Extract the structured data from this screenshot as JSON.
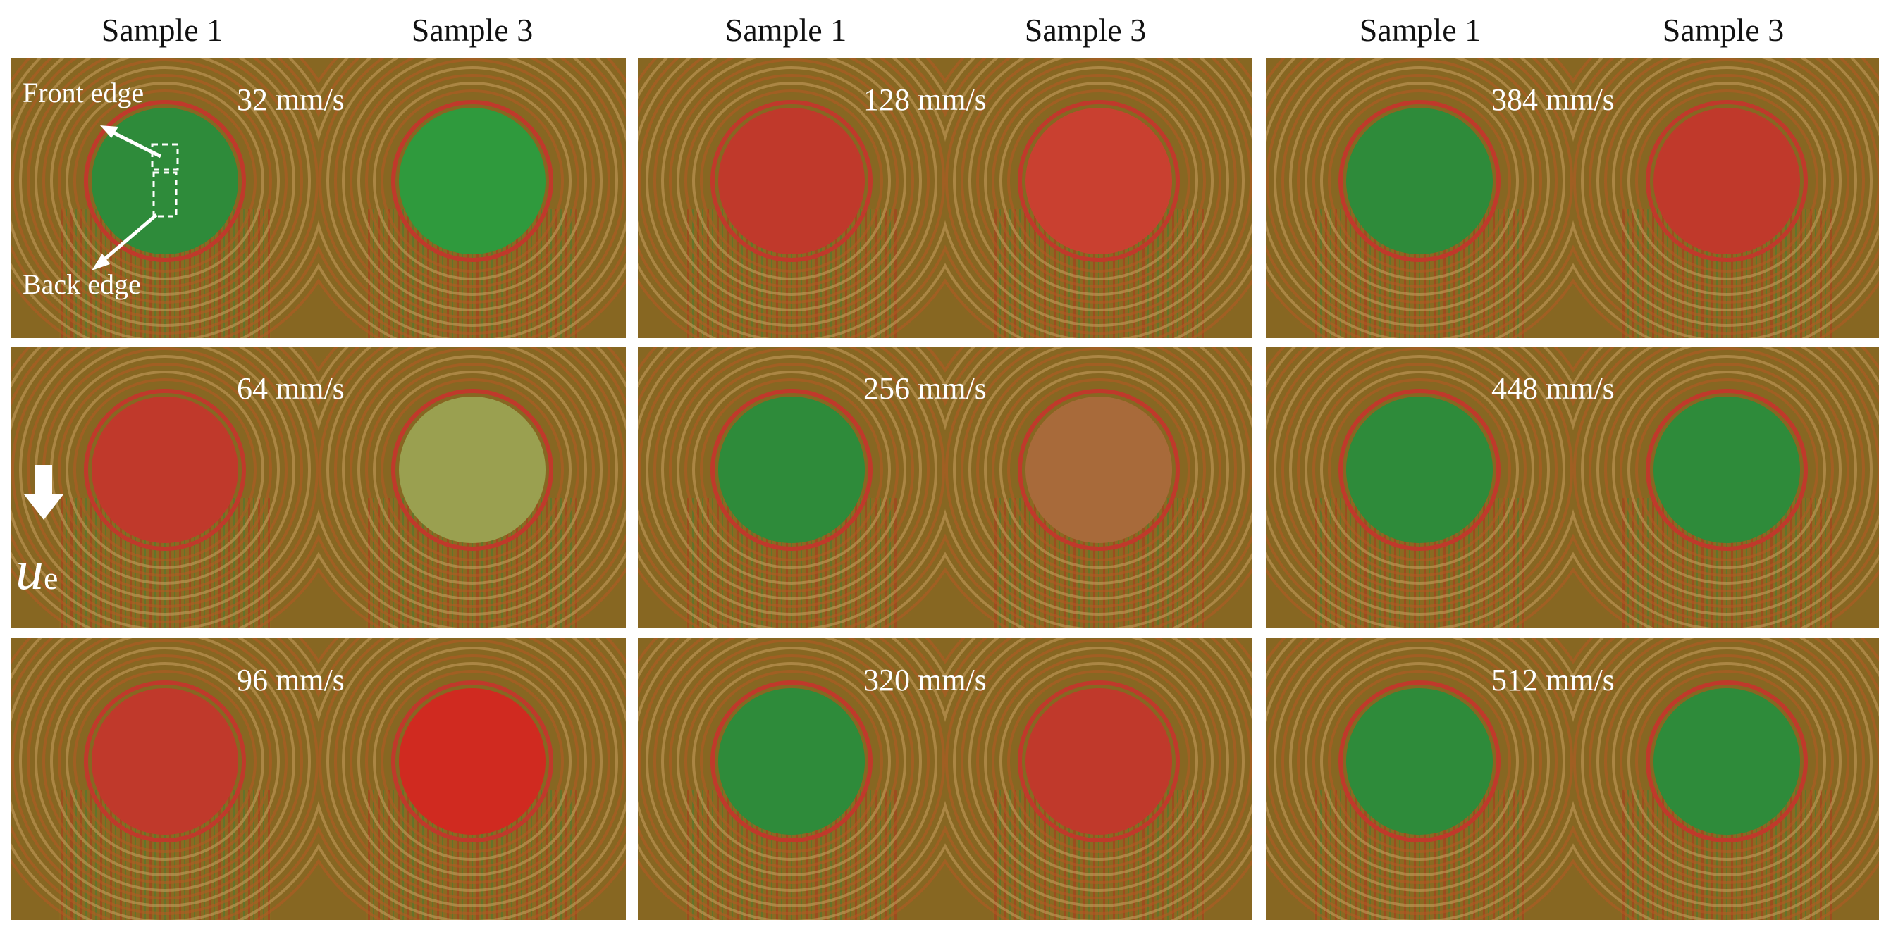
{
  "headers": [
    "Sample 1",
    "Sample 3",
    "Sample 1",
    "Sample 3",
    "Sample 1",
    "Sample 3"
  ],
  "speeds": {
    "c0": [
      "32 mm/s",
      "64 mm/s",
      "96 mm/s"
    ],
    "c1": [
      "128 mm/s",
      "256 mm/s",
      "320 mm/s"
    ],
    "c2": [
      "384 mm/s",
      "448  mm/s",
      "512 mm/s"
    ]
  },
  "annotations": {
    "front_edge": "Front edge",
    "back_edge": "Back edge",
    "velocity_symbol": "u",
    "velocity_subscript": "e"
  },
  "colors": {
    "background": "#8a6a22",
    "fringe_red": "#c0392b",
    "fringe_green": "#2e8b3a",
    "text": "#ffffff"
  }
}
